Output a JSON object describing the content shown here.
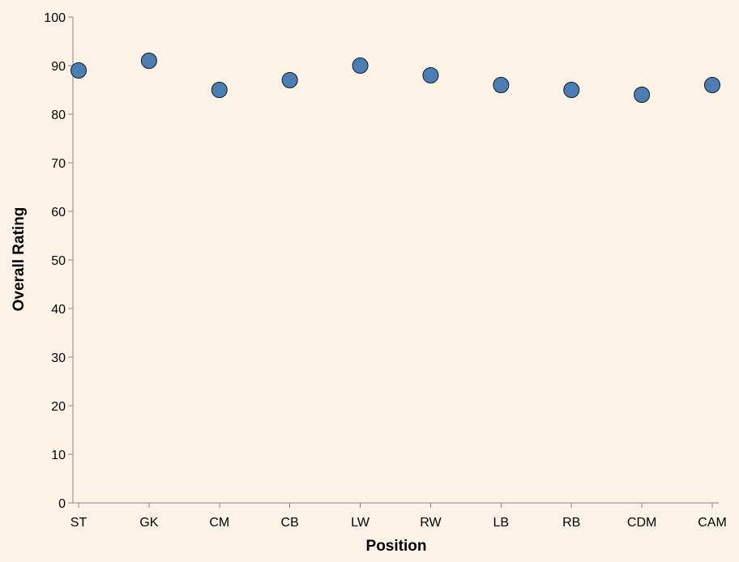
{
  "chart_data": {
    "type": "scatter",
    "xlabel": "Position",
    "ylabel": "Overall Rating",
    "categories": [
      "ST",
      "GK",
      "CM",
      "CB",
      "LW",
      "RW",
      "LB",
      "RB",
      "CDM",
      "CAM"
    ],
    "values": [
      89,
      91,
      85,
      87,
      90,
      88,
      86,
      85,
      84,
      86
    ],
    "ylim": [
      0,
      100
    ],
    "yticks": [
      0,
      10,
      20,
      30,
      40,
      50,
      60,
      70,
      80,
      90,
      100
    ],
    "grid": false,
    "legend": "none",
    "colors": {
      "point_fill": "#4a7fb5",
      "point_stroke": "#1a1a1a",
      "background": "#fdf3e6",
      "axis": "#888888"
    }
  }
}
